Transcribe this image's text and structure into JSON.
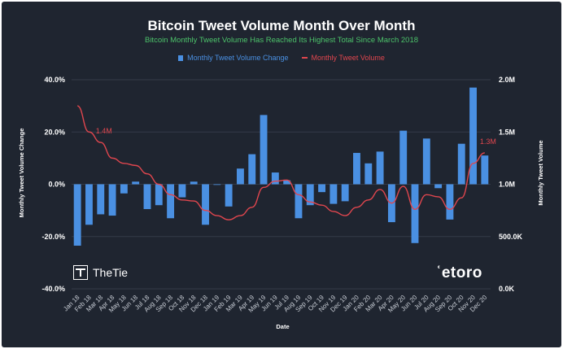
{
  "title": "Bitcoin Tweet Volume Month Over Month",
  "subtitle": "Bitcoin Monthly Tweet Volume Has Reached Its Highest Total Since March 2018",
  "brand_left": "TheTie",
  "brand_right": "etoro",
  "colors": {
    "bars": "#4a90e2",
    "line": "#e0464e",
    "subtitle": "#4cc26a",
    "background": "#1f2530"
  },
  "chart_data": {
    "type": "bar",
    "title": "Bitcoin Tweet Volume Month Over Month",
    "subtitle": "Bitcoin Monthly Tweet Volume Has Reached Its Highest Total Since March 2018",
    "xlabel": "Date",
    "ylabel_left": "Monthly Tweet Volume Change",
    "ylabel_right": "Monthly Tweet Volume",
    "legend_position": "top-center",
    "grid": true,
    "x_tick_labels": [
      "Jan 18",
      "Feb 18",
      "Mar 18",
      "Apr 18",
      "May 18",
      "Jun 18",
      "Jul 18",
      "Aug 18",
      "Sep 18",
      "Oct 18",
      "Nov 18",
      "Dec 18",
      "Jan 19",
      "Feb 19",
      "Mar 19",
      "Apr 19",
      "May 19",
      "Jun 19",
      "Jul 19",
      "Aug 19",
      "Sep 19",
      "Oct 19",
      "Nov 19",
      "Dec 19",
      "Jan 20",
      "Feb 20",
      "Mar 20",
      "Apr 20",
      "May 20",
      "Jun 20",
      "Jul 20",
      "Aug 20",
      "Sep 20",
      "Oct 20",
      "Nov 20",
      "Dec 20"
    ],
    "y_left": {
      "ticks": [
        "40.0%",
        "20.0%",
        "0.0%",
        "-20.0%",
        "-40.0%"
      ],
      "range": [
        -40,
        40
      ]
    },
    "y_right": {
      "ticks": [
        "2.0M",
        "1.5M",
        "1.0M",
        "500.0K",
        "0.0K"
      ],
      "range": [
        0,
        2000000
      ]
    },
    "series": [
      {
        "name": "Monthly Tweet Volume Change",
        "type": "bar",
        "values": [
          -23.5,
          -15.5,
          -11.5,
          -12,
          -3.5,
          1,
          -9.5,
          -8,
          -13,
          -5,
          1,
          -15.5,
          0,
          -8.5,
          6,
          11.5,
          26.5,
          4.5,
          1.5,
          -13,
          -8,
          -3,
          -7.5,
          -6.5,
          12,
          8,
          12.5,
          -14.5,
          20.5,
          -22.5,
          17.5,
          -1.5,
          -13.5,
          15.5,
          37,
          11
        ]
      },
      {
        "name": "Monthly Tweet Volume",
        "type": "line",
        "points": [
          [
            "Jan 18",
            1750000
          ],
          [
            "Feb 18",
            1500000
          ],
          [
            "Mar 18",
            1400000
          ],
          [
            "Apr 18",
            1250000
          ],
          [
            "May 18",
            1200000
          ],
          [
            "Jun 18",
            1180000
          ],
          [
            "Jul 18",
            1100000
          ],
          [
            "Aug 18",
            1000000
          ],
          [
            "Sep 18",
            900000
          ],
          [
            "Oct 18",
            850000
          ],
          [
            "Nov 18",
            840000
          ],
          [
            "Dec 18",
            750000
          ],
          [
            "Jan 19",
            700000
          ],
          [
            "Feb 19",
            660000
          ],
          [
            "Mar 19",
            700000
          ],
          [
            "Apr 19",
            780000
          ],
          [
            "May 19",
            970000
          ],
          [
            "Jun 19",
            1030000
          ],
          [
            "Jul 19",
            1040000
          ],
          [
            "Aug 19",
            900000
          ],
          [
            "Sep 19",
            830000
          ],
          [
            "Oct 19",
            800000
          ],
          [
            "Nov 19",
            740000
          ],
          [
            "Dec 19",
            700000
          ],
          [
            "Jan 20",
            780000
          ],
          [
            "Feb 20",
            850000
          ],
          [
            "Mar 20",
            950000
          ],
          [
            "Apr 20",
            820000
          ],
          [
            "May 20",
            980000
          ],
          [
            "Jun 20",
            760000
          ],
          [
            "Jul 20",
            900000
          ],
          [
            "Aug 20",
            880000
          ],
          [
            "Sep 20",
            760000
          ],
          [
            "Oct 20",
            870000
          ],
          [
            "Nov 20",
            1200000
          ],
          [
            "Dec 20",
            1300000
          ]
        ],
        "data_labels": [
          {
            "x": "Mar 18",
            "text": "1.4M"
          },
          {
            "x": "Dec 20",
            "text": "1.3M"
          }
        ]
      }
    ]
  }
}
